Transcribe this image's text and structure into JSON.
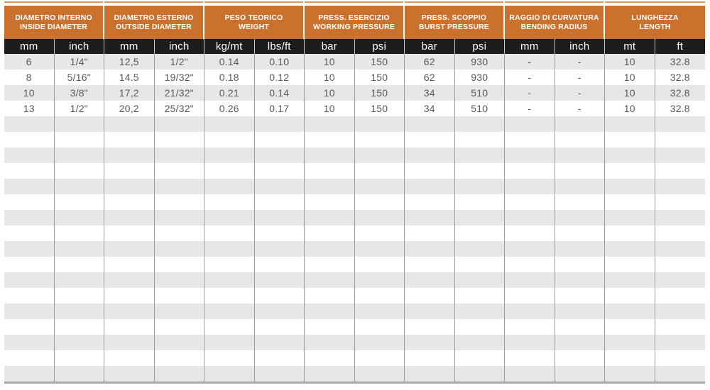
{
  "colors": {
    "orange": "#CB712E",
    "orange_rule": "#DB9557",
    "black_bar": "#1D1D1B",
    "row_gray": "#E6E7E8",
    "row_white": "#FFFFFF",
    "divider": "#9B9DA0",
    "units_divider": "#C3C4C6",
    "bottom_border": "#A7A9AC",
    "data_text": "#58595B",
    "header_text": "#FFFFFF"
  },
  "table": {
    "groups": [
      {
        "line1": "DIAMETRO INTERNO",
        "line2": "INSIDE DIAMETER"
      },
      {
        "line1": "DIAMETRO ESTERNO",
        "line2": "OUTSIDE DIAMETER"
      },
      {
        "line1": "PESO TEORICO",
        "line2": "WEIGHT"
      },
      {
        "line1": "PRESS. ESERCIZIO",
        "line2": "WORKING PRESSURE"
      },
      {
        "line1": "PRESS. SCOPPIO",
        "line2": "BURST PRESSURE"
      },
      {
        "line1": "RAGGIO DI CURVATURA",
        "line2": "BENDING RADIUS"
      },
      {
        "line1": "LUNGHEZZA",
        "line2": "LENGTH"
      }
    ],
    "units": [
      "mm",
      "inch",
      "mm",
      "inch",
      "kg/mt",
      "lbs/ft",
      "bar",
      "psi",
      "bar",
      "psi",
      "mm",
      "inch",
      "mt",
      "ft"
    ],
    "data_rows": [
      [
        "6",
        "1/4\"",
        "12,5",
        "1/2\"",
        "0.14",
        "0.10",
        "10",
        "150",
        "62",
        "930",
        "-",
        "-",
        "10",
        "32.8"
      ],
      [
        "8",
        "5/16\"",
        "14.5",
        "19/32\"",
        "0.18",
        "0.12",
        "10",
        "150",
        "62",
        "930",
        "-",
        "-",
        "10",
        "32.8"
      ],
      [
        "10",
        "3/8\"",
        "17,2",
        "21/32\"",
        "0.21",
        "0.14",
        "10",
        "150",
        "34",
        "510",
        "-",
        "-",
        "10",
        "32.8"
      ],
      [
        "13",
        "1/2\"",
        "20,2",
        "25/32\"",
        "0.26",
        "0.17",
        "10",
        "150",
        "34",
        "510",
        "-",
        "-",
        "10",
        "32.8"
      ]
    ],
    "empty_row_count": 17
  }
}
